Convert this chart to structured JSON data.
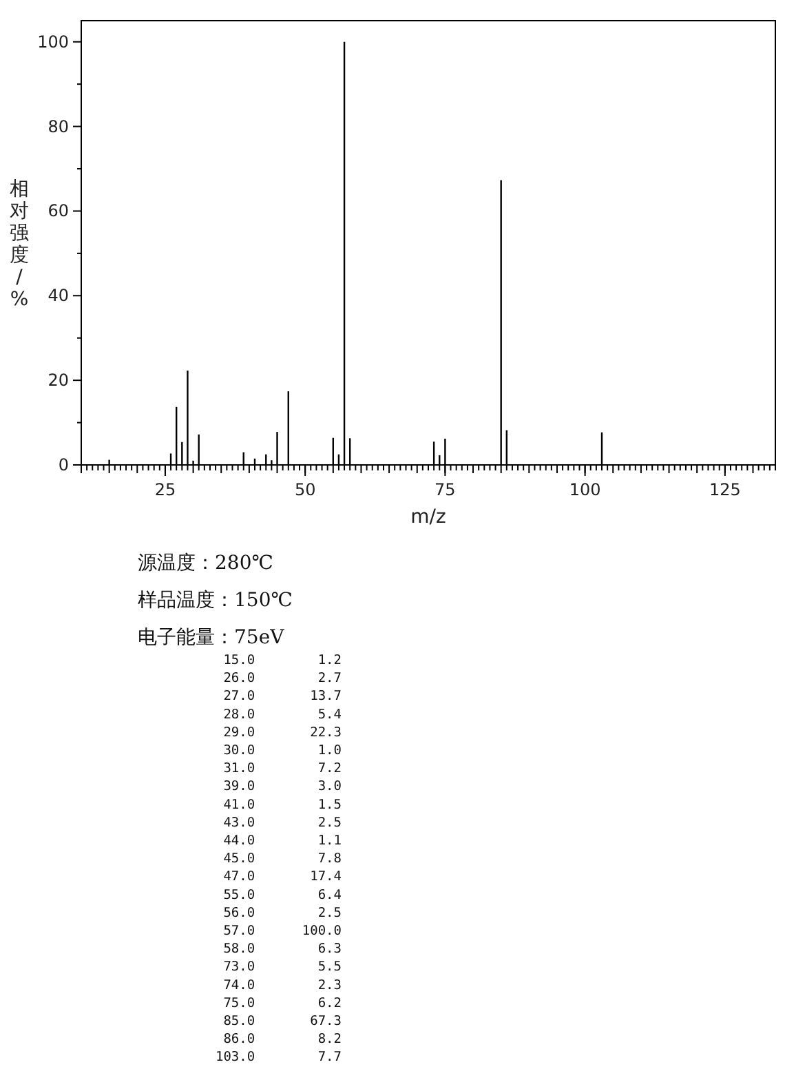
{
  "chart_data": {
    "type": "bar",
    "xlabel": "m/z",
    "ylabel": "相对强度/%",
    "annotations": [
      "源温度：280℃",
      "样品温度：150℃",
      "电子能量：75eV",
      "15.0        1.2",
      "26.0        2.7",
      "27.0       13.7",
      "28.0        5.4",
      "29.0       22.3",
      "30.0        1.0",
      "31.0        7.2",
      "39.0        3.0",
      "41.0        1.5",
      "43.0        2.5",
      "44.0        1.1",
      "45.0        7.8",
      "47.0       17.4",
      "55.0        6.4",
      "56.0        2.5",
      "57.0      100.0",
      "58.0        6.3",
      "73.0        5.5",
      "74.0        2.3",
      "75.0        6.2",
      "85.0       67.3",
      "86.0        8.2",
      "103.0        7.7"
    ],
    "x": [
      15,
      26,
      27,
      28,
      29,
      30,
      31,
      39,
      41,
      43,
      44,
      45,
      47,
      55,
      56,
      57,
      58,
      73,
      74,
      75,
      85,
      86,
      103
    ],
    "values": [
      1.2,
      2.7,
      13.7,
      5.4,
      22.3,
      1.0,
      7.2,
      3.0,
      1.5,
      2.5,
      1.1,
      7.8,
      17.4,
      6.4,
      2.5,
      100.0,
      6.3,
      5.5,
      2.3,
      6.2,
      67.3,
      8.2,
      7.7
    ],
    "color": "#000000",
    "xlim": [
      10,
      134
    ],
    "xticks": [
      25,
      50,
      75,
      100,
      125
    ],
    "ylim": [
      0,
      105
    ],
    "yticks": [
      0,
      20,
      40,
      60,
      80,
      100
    ],
    "grid": false
  }
}
